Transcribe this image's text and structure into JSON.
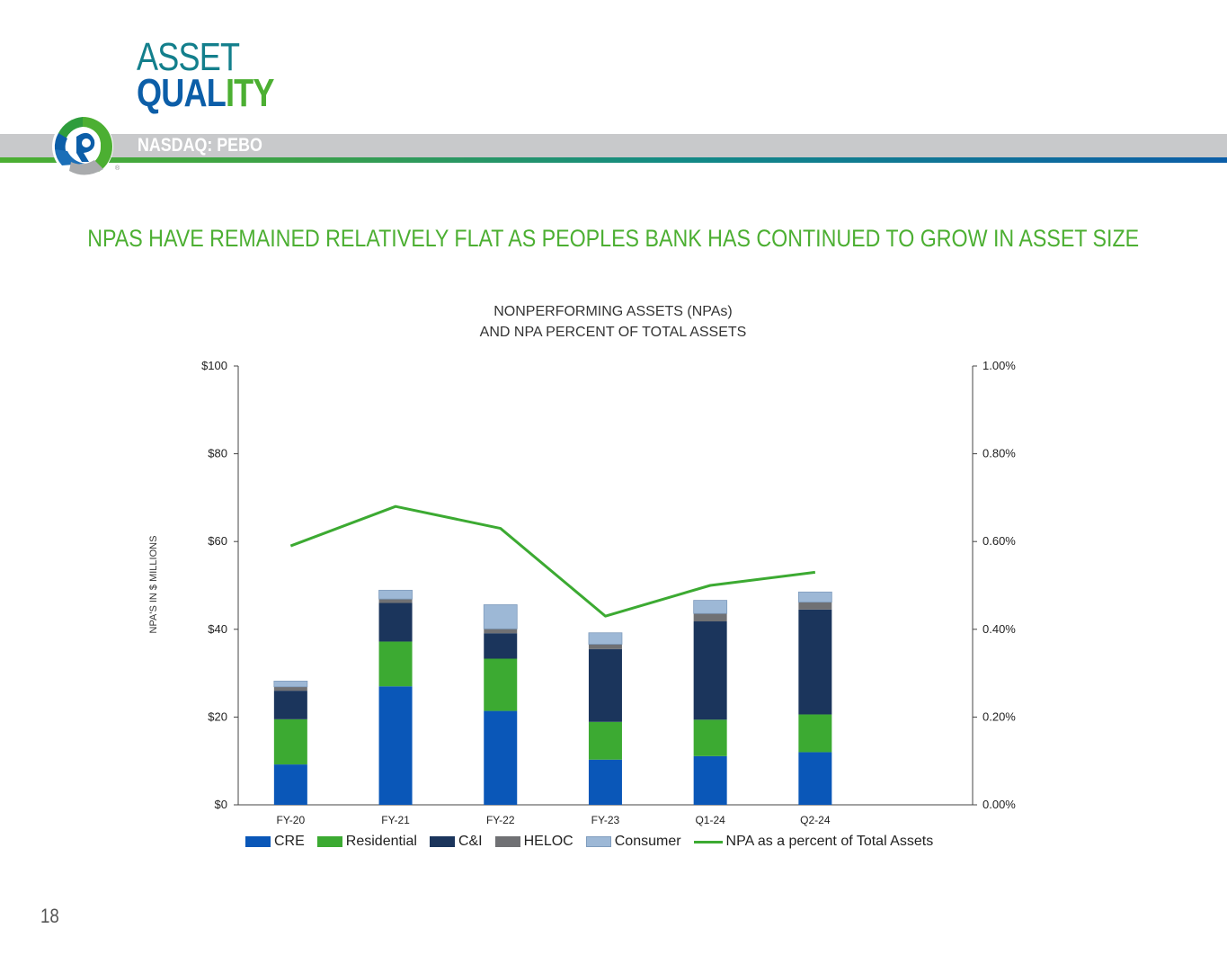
{
  "header": {
    "title_line1": "ASSET",
    "title_line2_word1": "QUAL",
    "title_line2_word2": "ITY",
    "ticker": "NASDAQ: PEBO"
  },
  "subtitle": "NPAS HAVE REMAINED RELATIVELY FLAT AS PEOPLES BANK HAS CONTINUED TO GROW IN ASSET SIZE",
  "page_number": "18",
  "colors": {
    "CRE": "#0a57b8",
    "Residential": "#3caa32",
    "C&I": "#1b355c",
    "HELOC": "#707174",
    "Consumer": "#9db8d6",
    "line": "#3caa32"
  },
  "chart_data": {
    "type": "bar",
    "title_line1": "NONPERFORMING ASSETS (NPAs)",
    "title_line2": "AND NPA PERCENT OF TOTAL ASSETS",
    "ylabel": "NPA'S IN $ MILLIONS",
    "categories": [
      "FY-20",
      "FY-21",
      "FY-22",
      "FY-23",
      "Q1-24",
      "Q2-24"
    ],
    "series": [
      {
        "name": "CRE",
        "values": [
          9.2,
          27.0,
          21.4,
          10.3,
          11.1,
          12.0
        ]
      },
      {
        "name": "Residential",
        "values": [
          10.3,
          10.2,
          11.9,
          8.6,
          8.3,
          8.6
        ]
      },
      {
        "name": "C&I",
        "values": [
          6.5,
          8.8,
          5.8,
          16.6,
          22.4,
          23.9
        ]
      },
      {
        "name": "HELOC",
        "values": [
          0.9,
          0.9,
          1.0,
          1.1,
          1.8,
          1.7
        ]
      },
      {
        "name": "Consumer",
        "values": [
          1.3,
          2.0,
          5.5,
          2.6,
          3.0,
          2.3
        ]
      }
    ],
    "line_series": {
      "name": "NPA as a percent of Total Assets",
      "values": [
        0.59,
        0.68,
        0.63,
        0.43,
        0.5,
        0.53
      ]
    },
    "ylim": [
      0,
      100
    ],
    "yticks": [
      "$0",
      "$20",
      "$40",
      "$60",
      "$80",
      "$100"
    ],
    "y2lim": [
      0,
      1.0
    ],
    "y2ticks": [
      "0.00%",
      "0.20%",
      "0.40%",
      "0.60%",
      "0.80%",
      "1.00%"
    ],
    "legend": [
      "CRE",
      "Residential",
      "C&I",
      "HELOC",
      "Consumer",
      "NPA as a percent of Total Assets"
    ]
  }
}
